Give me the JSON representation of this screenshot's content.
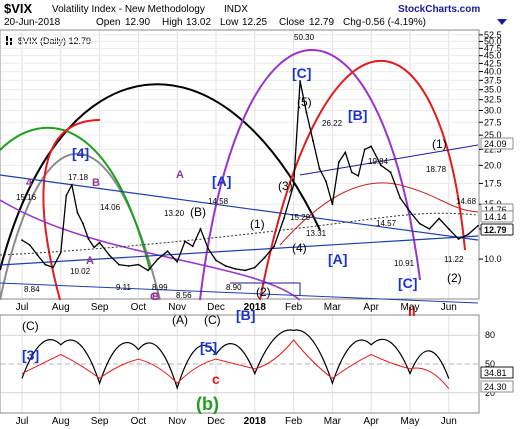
{
  "header": {
    "symbol": "$VIX",
    "name": "Volatility Index - New Methodology",
    "exchange": "INDX",
    "logo": "StockCharts.com",
    "date": "20-Jun-2018",
    "open_label": "Open",
    "open": "12.90",
    "high_label": "High",
    "high": "13.02",
    "low_label": "Low",
    "low": "12.25",
    "close_label": "Close",
    "close": "12.79",
    "chg_label": "Chg",
    "chg": "-0.56 (-4.19%)",
    "legend": "$VIX (Daily) 12.79"
  },
  "colors": {
    "price": "#000000",
    "black_arc": "#000000",
    "purple_arc": "#9933cc",
    "red_arc": "#e41a1c",
    "green_arc": "#1f9e1f",
    "gray_arc": "#8c8c8c",
    "navy": "#1a1a9c",
    "trend_blue": "#1f3fa8",
    "ma_red": "#cc2222",
    "label_blue": "#1a33cc",
    "label_purple": "#8e3a8e",
    "highlight_close": "#1a1a1a",
    "highlight_gray": "#8c8c8c"
  },
  "chart_data": [
    {
      "type": "line",
      "panel": "price",
      "scale": "log",
      "ylim": [
        7.5,
        54
      ],
      "yticks": [
        10.0,
        12.5,
        15.0,
        17.5,
        20.0,
        22.5,
        25.0,
        27.5,
        30.0,
        32.5,
        35.0,
        37.5,
        40.0,
        42.5,
        45.0,
        47.5,
        50.0,
        52.5
      ],
      "x_tick_labels": [
        "Jul",
        "Aug",
        "Sep",
        "Oct",
        "Nov",
        "Dec",
        "2018",
        "Feb",
        "Mar",
        "Apr",
        "May",
        "Jun"
      ],
      "series": [
        {
          "name": "$VIX (Daily)",
          "x": [
            "Jul",
            "Jul",
            "Jul",
            "Jul",
            "Jul",
            "Aug",
            "Aug",
            "Aug",
            "Aug",
            "Aug",
            "Aug",
            "Aug",
            "Sep",
            "Sep",
            "Sep",
            "Sep",
            "Oct",
            "Oct",
            "Oct",
            "Oct",
            "Nov",
            "Nov",
            "Nov",
            "Nov",
            "Nov",
            "Dec",
            "Dec",
            "Dec",
            "Dec",
            "2018",
            "2018",
            "2018",
            "2018",
            "Feb",
            "Feb",
            "Feb",
            "Feb",
            "Feb",
            "Feb",
            "Mar",
            "Mar",
            "Mar",
            "Mar",
            "Mar",
            "Mar",
            "Apr",
            "Apr",
            "Apr",
            "Apr",
            "May",
            "May",
            "May",
            "May",
            "Jun",
            "Jun",
            "Jun",
            "Jun"
          ],
          "values": [
            11.5,
            11.1,
            10.3,
            9.6,
            9.4,
            10.5,
            16.0,
            17.3,
            14.1,
            13.0,
            11.6,
            10.9,
            11.3,
            10.3,
            9.6,
            9.5,
            9.6,
            9.2,
            10.0,
            10.6,
            9.8,
            11.4,
            11.0,
            12.5,
            10.8,
            9.9,
            9.5,
            9.3,
            9.2,
            9.4,
            10.1,
            11.0,
            13.5,
            17.3,
            37.3,
            29.5,
            24.0,
            19.5,
            17.8,
            15.0,
            20.5,
            22.0,
            19.0,
            18.5,
            22.5,
            23.0,
            20.0,
            19.0,
            15.7,
            14.2,
            13.0,
            12.5,
            13.5,
            12.5,
            11.6,
            12.0,
            12.79
          ]
        }
      ],
      "annotations": [
        "[4]",
        "4",
        "B",
        "A",
        "A",
        "B",
        "C",
        "[A]",
        "(B)",
        "(1)",
        "(3)",
        "(4)",
        "(2)",
        "(A)",
        "(C)",
        "[B]",
        "[C]",
        "(5)",
        "[B]",
        "[A]",
        "(1)",
        "[C]",
        "(2)",
        "II",
        "17.18",
        "15.16",
        "14.06",
        "13.20",
        "14.58",
        "10.02",
        "8.84",
        "9.11",
        "8.99",
        "8.56",
        "8.90",
        "50.30",
        "26.22",
        "15.29",
        "13.31",
        "19.84",
        "14.57",
        "18.78",
        "14.68",
        "10.91",
        "11.22"
      ],
      "right_badges": [
        "24.09",
        "14.76",
        "14.14",
        "12.79"
      ]
    },
    {
      "type": "line",
      "panel": "oscillator",
      "ylim": [
        0,
        100
      ],
      "yticks": [
        20,
        50,
        80
      ],
      "right_badges": [
        "34.81",
        "24.30"
      ],
      "annotations": [
        "(C)",
        "[3]",
        "[5]",
        "c",
        "(b)",
        "2018"
      ],
      "series": [
        {
          "name": "fast",
          "x": [
            "Jul",
            "Aug",
            "Sep",
            "Oct",
            "Nov",
            "Dec",
            "2018",
            "Feb",
            "Mar",
            "Apr",
            "May",
            "Jun"
          ],
          "values": [
            35,
            70,
            30,
            65,
            25,
            60,
            40,
            85,
            30,
            70,
            40,
            34.81
          ]
        },
        {
          "name": "slow",
          "x": [
            "Jul",
            "Aug",
            "Sep",
            "Oct",
            "Nov",
            "Dec",
            "2018",
            "Feb",
            "Mar",
            "Apr",
            "May",
            "Jun"
          ],
          "values": [
            40,
            60,
            35,
            55,
            30,
            55,
            45,
            75,
            35,
            60,
            45,
            24.3
          ]
        }
      ]
    }
  ]
}
